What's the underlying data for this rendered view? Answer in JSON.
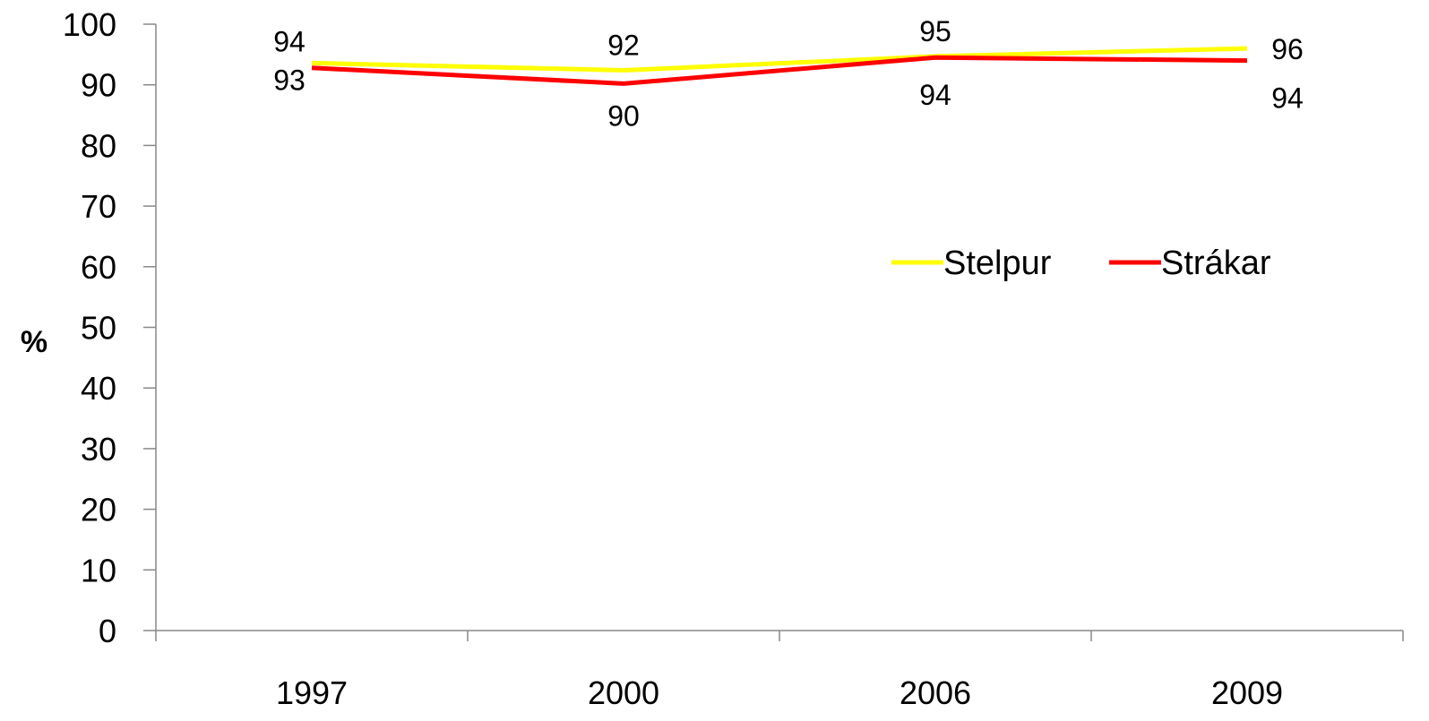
{
  "chart_data": {
    "type": "line",
    "title": "",
    "xlabel": "",
    "ylabel": "%",
    "ylim": [
      0,
      100
    ],
    "y_ticks": [
      0,
      10,
      20,
      30,
      40,
      50,
      60,
      70,
      80,
      90,
      100
    ],
    "categories": [
      "1997",
      "2000",
      "2006",
      "2009"
    ],
    "grid": false,
    "legend_position": "right",
    "series": [
      {
        "name": "Stelpur",
        "color": "#FFFF00",
        "values": [
          94,
          92,
          95,
          96
        ],
        "plot_values": [
          93.6,
          92.4,
          94.7,
          96.0
        ]
      },
      {
        "name": "Strákar",
        "color": "#FF0000",
        "values": [
          93,
          90,
          94,
          94
        ],
        "plot_values": [
          92.8,
          90.2,
          94.5,
          94.0
        ]
      }
    ]
  }
}
